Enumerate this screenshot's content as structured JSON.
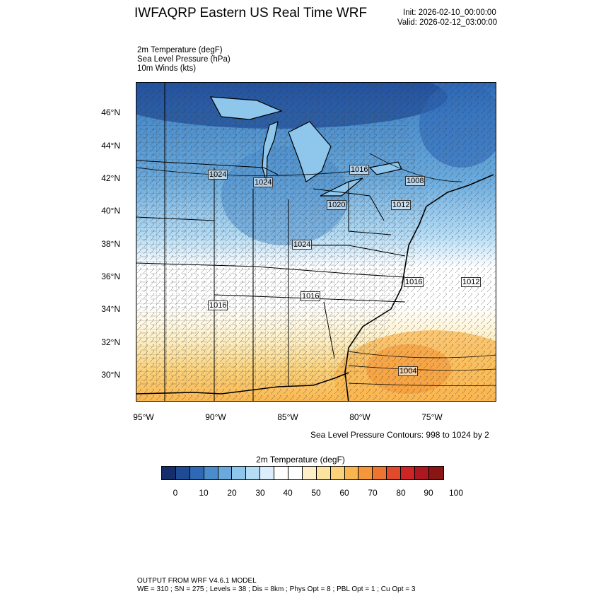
{
  "header": {
    "title": "IWFAQRP Eastern US Real Time WRF",
    "init": "Init: 2026-02-10_00:00:00",
    "valid": "Valid: 2026-02-12_03:00:00"
  },
  "fields": [
    "2m Temperature   (degF)",
    "Sea Level Pressure   (hPa)",
    "10m Winds   (kts)"
  ],
  "map": {
    "lat_labels": [
      "46°N",
      "44°N",
      "42°N",
      "40°N",
      "38°N",
      "36°N",
      "34°N",
      "32°N",
      "30°N"
    ],
    "lon_labels": [
      "95°W",
      "90°W",
      "85°W",
      "80°W",
      "75°W"
    ],
    "pressure_labels": [
      "1024",
      "1024",
      "1016",
      "1008",
      "1020",
      "1012",
      "1024",
      "1016",
      "1012",
      "1016",
      "1016",
      "1004"
    ]
  },
  "contour_note": "Sea Level Pressure Contours: 998 to 1024 by 2",
  "legend": {
    "title": "2m Temperature  (degF)",
    "tick_labels": [
      "0",
      "10",
      "20",
      "30",
      "40",
      "50",
      "60",
      "70",
      "80",
      "90",
      "100"
    ],
    "colors": [
      "#152e6b",
      "#1f4a94",
      "#2f68b5",
      "#4a8ccc",
      "#69a9dc",
      "#8ec6ec",
      "#b5dcf5",
      "#daeefb",
      "#ffffff",
      "#ffffff",
      "#fdf0c8",
      "#fce4a0",
      "#fbd27a",
      "#f9b650",
      "#f49639",
      "#ed7530",
      "#e24a2c",
      "#cc2427",
      "#ad1722",
      "#8a1515"
    ]
  },
  "footer": {
    "line1": "OUTPUT FROM WRF V4.6.1 MODEL",
    "line2": "WE = 310 ; SN = 275 ; Levels = 38 ; Dis = 8km ; Phys Opt = 8 ; PBL Opt = 1 ; Cu Opt = 3"
  }
}
